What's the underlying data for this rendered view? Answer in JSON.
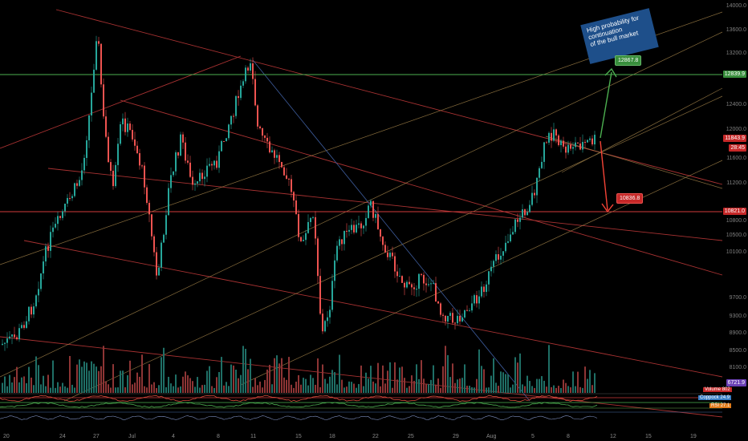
{
  "annotation": {
    "text_lines": [
      "High probability for",
      "continuation",
      "of the bull market"
    ]
  },
  "targets": {
    "up_target": "12867.8",
    "down_target": "10836.8"
  },
  "price_axis": {
    "ticks": [
      "14000.0",
      "13600.0",
      "13200.0",
      "12800.0",
      "12400.0",
      "12000.0",
      "11600.0",
      "11200.0",
      "10800.0",
      "10500.0",
      "10100.0",
      "9700.0",
      "9300.0",
      "8900.0",
      "8500.0",
      "8100.0"
    ],
    "resistance_label": "12839.9",
    "support_label": "10821.0",
    "current_price": "11843.9",
    "countdown": "28:45",
    "volume_ma_label": "6721.9",
    "volume_label": "Volume",
    "volume_value": "802",
    "indicator1_label": "Coppock",
    "indicator1_value": "24.9",
    "indicator2_label": "RSI",
    "indicator2_value": "27.1"
  },
  "time_axis": {
    "labels": [
      "20",
      "24",
      "27",
      "Jul",
      "4",
      "8",
      "11",
      "15",
      "18",
      "22",
      "25",
      "29",
      "Aug",
      "5",
      "8",
      "12",
      "15",
      "19"
    ]
  },
  "colors": {
    "up": "#26a69a",
    "down": "#ef5350",
    "channel_red": "#b33333",
    "fan_orange": "#c8a25c",
    "support": "#d23c3c",
    "resistance": "#4caf50",
    "arrow_up": "#4caf50",
    "arrow_down": "#f44336"
  }
}
